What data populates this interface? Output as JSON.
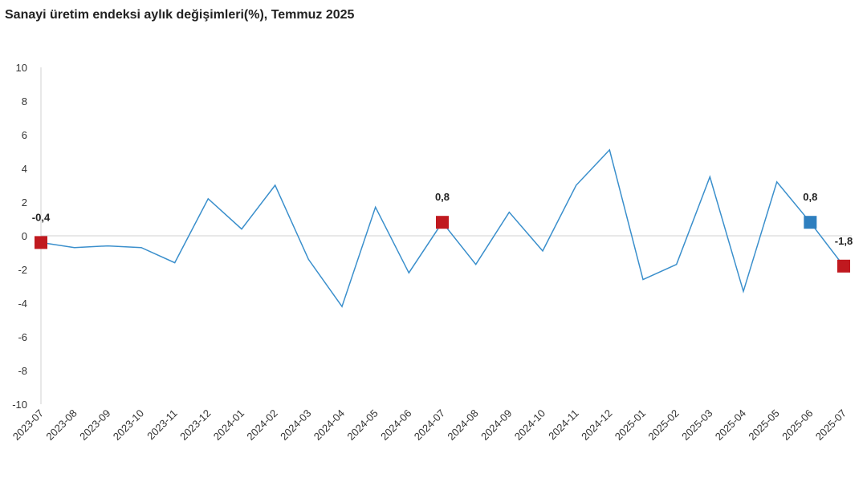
{
  "chart_data": {
    "type": "line",
    "title": "Sanayi üretim endeksi aylık değişimleri(%), Temmuz 2025",
    "xlabel": "",
    "ylabel": "",
    "ylim": [
      -10,
      10
    ],
    "yticks": [
      "10",
      "8",
      "6",
      "4",
      "2",
      "0",
      "-2",
      "-4",
      "-6",
      "-8",
      "-10"
    ],
    "categories": [
      "2023-07",
      "2023-08",
      "2023-09",
      "2023-10",
      "2023-11",
      "2023-12",
      "2024-01",
      "2024-02",
      "2024-03",
      "2024-04",
      "2024-05",
      "2024-06",
      "2024-07",
      "2024-08",
      "2024-09",
      "2024-10",
      "2024-11",
      "2024-12",
      "2025-01",
      "2025-02",
      "2025-03",
      "2025-04",
      "2025-05",
      "2025-06",
      "2025-07"
    ],
    "series": [
      {
        "values": [
          -0.4,
          -0.7,
          -0.6,
          -0.7,
          -1.6,
          2.2,
          0.4,
          3.0,
          -1.4,
          -4.2,
          1.7,
          -2.2,
          0.8,
          -1.7,
          1.4,
          -0.9,
          3.0,
          5.1,
          -2.6,
          -1.7,
          3.5,
          -3.3,
          3.2,
          0.8,
          -1.8
        ],
        "color": "#3a8fcc"
      }
    ],
    "highlights": [
      {
        "category": "2023-07",
        "value": -0.4,
        "label": "-0,4",
        "color": "#c0191f"
      },
      {
        "category": "2024-07",
        "value": 0.8,
        "label": "0,8",
        "color": "#c0191f"
      },
      {
        "category": "2025-06",
        "value": 0.8,
        "label": "0,8",
        "color": "#2e7fbf"
      },
      {
        "category": "2025-07",
        "value": -1.8,
        "label": "-1,8",
        "color": "#c0191f"
      }
    ],
    "grid": false
  }
}
